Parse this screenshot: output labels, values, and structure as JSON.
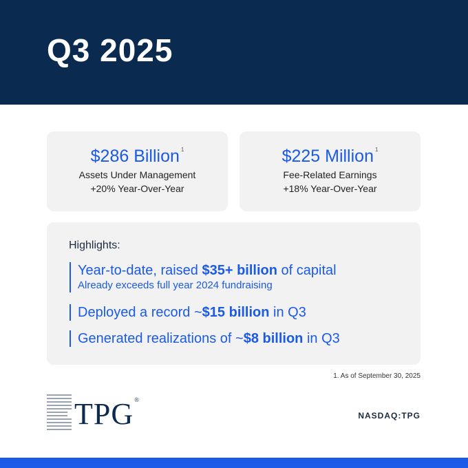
{
  "header": {
    "title": "Q3 2025"
  },
  "cards": [
    {
      "value": "$286 Billion",
      "note": "1",
      "label": "Assets Under Management",
      "change": "+20% Year-Over-Year"
    },
    {
      "value": "$225 Million",
      "note": "1",
      "label": "Fee-Related Earnings",
      "change": "+18% Year-Over-Year"
    }
  ],
  "highlights": {
    "title": "Highlights:",
    "items": [
      {
        "parts": [
          "Year-to-date, raised ",
          "$35+ billion",
          " of capital"
        ],
        "sub": "Already exceeds full year 2024 fundraising"
      },
      {
        "parts": [
          "Deployed a record ~",
          "$15 billion",
          " in Q3"
        ]
      },
      {
        "parts": [
          "Generated realizations of ~",
          "$8 billion",
          " in Q3"
        ]
      }
    ]
  },
  "footnote": "1. As of September 30, 2025",
  "logo": {
    "text": "TPG",
    "mark": "®"
  },
  "ticker": "NASDAQ:TPG"
}
